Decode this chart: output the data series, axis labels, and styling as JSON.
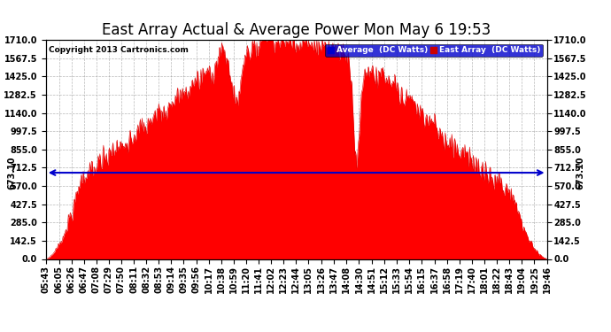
{
  "title": "East Array Actual & Average Power Mon May 6 19:53",
  "copyright": "Copyright 2013 Cartronics.com",
  "legend_labels": [
    "Average  (DC Watts)",
    "East Array  (DC Watts)"
  ],
  "legend_bg_colors": [
    "#0000cc",
    "#cc0000"
  ],
  "avg_line_value": 673.1,
  "avg_label": "673.10",
  "ylim": [
    0,
    1710.0
  ],
  "yticks": [
    0.0,
    142.5,
    285.0,
    427.5,
    570.0,
    712.5,
    855.0,
    997.5,
    1140.0,
    1282.5,
    1425.0,
    1567.5,
    1710.0
  ],
  "background_color": "#ffffff",
  "plot_bg_color": "#ffffff",
  "grid_color": "#888888",
  "fill_color": "#ff0000",
  "line_color": "#dd0000",
  "avg_line_color": "#0000cc",
  "title_fontsize": 12,
  "tick_fontsize": 7,
  "label_fontsize": 7,
  "xtick_labels": [
    "05:43",
    "06:05",
    "06:26",
    "06:47",
    "07:08",
    "07:29",
    "07:50",
    "08:11",
    "08:32",
    "08:53",
    "09:14",
    "09:35",
    "09:56",
    "10:17",
    "10:38",
    "10:59",
    "11:20",
    "11:41",
    "12:02",
    "12:23",
    "12:44",
    "13:05",
    "13:26",
    "13:47",
    "14:08",
    "14:30",
    "14:51",
    "15:12",
    "15:33",
    "15:54",
    "16:15",
    "16:37",
    "16:58",
    "17:19",
    "17:40",
    "18:01",
    "18:22",
    "18:43",
    "19:04",
    "19:25",
    "19:46"
  ]
}
